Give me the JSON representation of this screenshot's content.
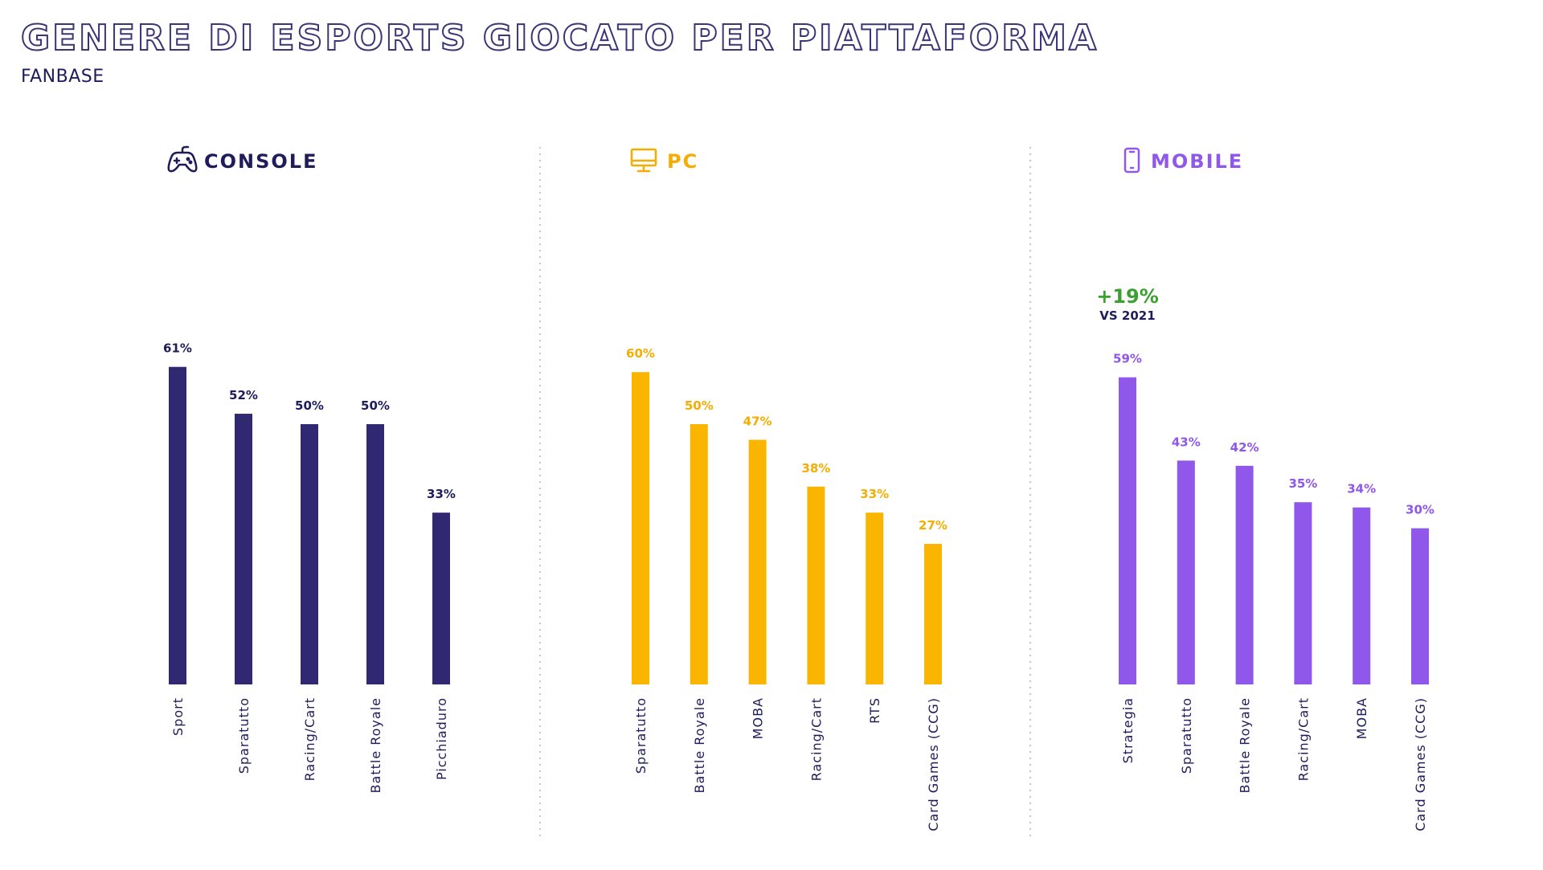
{
  "title": "GENERE DI ESPORTS GIOCATO PER PIATTAFORMA",
  "subtitle": "FANBASE",
  "chart_data": [
    {
      "type": "bar",
      "title": "CONSOLE",
      "icon": "gamepad-icon",
      "color": "#302870",
      "label_color": "#1f1c5c",
      "categories": [
        "Sport",
        "Sparatutto",
        "Racing/Cart",
        "Battle Royale",
        "Picchiaduro"
      ],
      "values": [
        61,
        52,
        50,
        50,
        33
      ],
      "labels": [
        "61%",
        "52%",
        "50%",
        "50%",
        "33%"
      ],
      "ylim": [
        0,
        100
      ],
      "grid": false
    },
    {
      "type": "bar",
      "title": "PC",
      "icon": "monitor-icon",
      "color": "#f9b500",
      "label_color": "#f4ad00",
      "categories": [
        "Sparatutto",
        "Battle Royale",
        "MOBA",
        "Racing/Cart",
        "RTS",
        "Card Games (CCG)"
      ],
      "values": [
        60,
        50,
        47,
        38,
        33,
        27
      ],
      "labels": [
        "60%",
        "50%",
        "47%",
        "38%",
        "33%",
        "27%"
      ],
      "ylim": [
        0,
        100
      ],
      "grid": false
    },
    {
      "type": "bar",
      "title": "MOBILE",
      "icon": "smartphone-icon",
      "color": "#8f58ea",
      "label_color": "#8f58ea",
      "categories": [
        "Strategia",
        "Sparatutto",
        "Battle Royale",
        "Racing/Cart",
        "MOBA",
        "Card Games (CCG)"
      ],
      "values": [
        59,
        43,
        42,
        35,
        34,
        30
      ],
      "labels": [
        "59%",
        "43%",
        "42%",
        "35%",
        "34%",
        "30%"
      ],
      "ylim": [
        0,
        100
      ],
      "grid": false,
      "annotation": {
        "category": "Strategia",
        "value": "+19%",
        "note": "VS 2021",
        "color": "#3aa02f",
        "note_color": "#1f1c5c"
      }
    }
  ]
}
